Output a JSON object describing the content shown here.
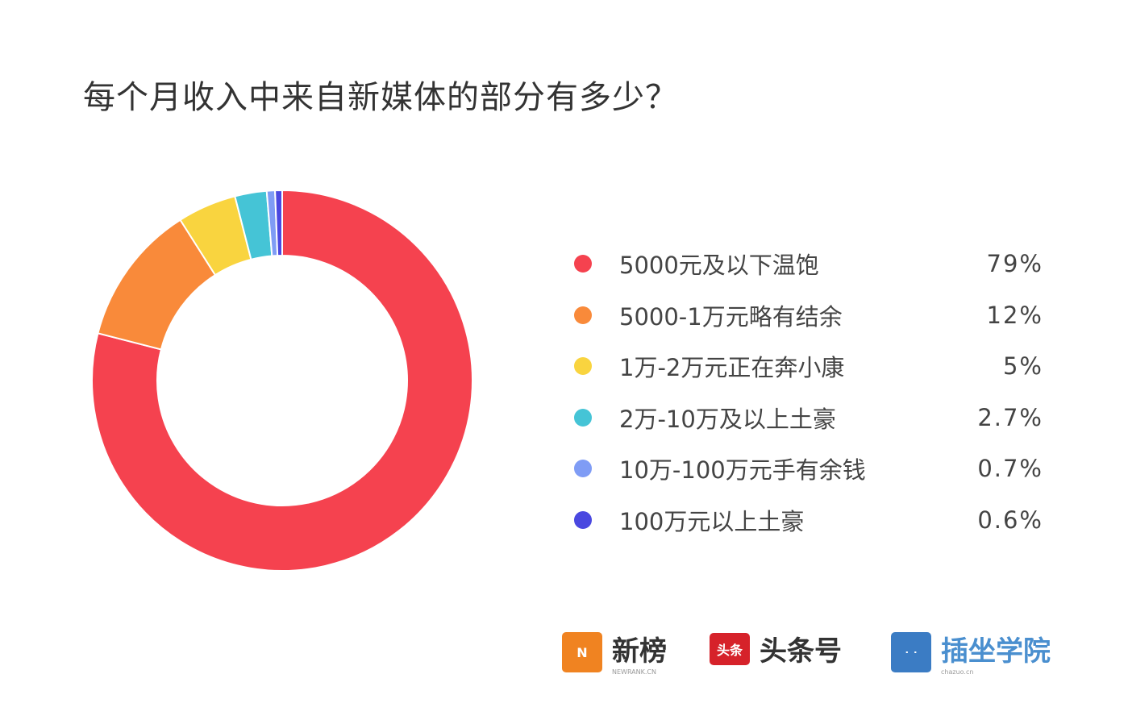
{
  "chart_data": {
    "type": "pie",
    "donut": true,
    "title": "每个月收入中来自新媒体的部分有多少？",
    "legend_position": "right",
    "categories": [
      "5000元及以下温饱",
      "5000-1万元略有结余",
      "1万-2万元正在奔小康",
      "2万-10万及以上土豪",
      "10万-100万元手有余钱",
      "100万元以上土豪"
    ],
    "values": [
      79,
      12,
      5,
      2.7,
      0.7,
      0.6
    ],
    "value_labels": [
      "79%",
      "12%",
      "5%",
      "2.7%",
      "0.7%",
      "0.6%"
    ],
    "colors": [
      "#f5424f",
      "#f98a3a",
      "#f9d43f",
      "#45c4d6",
      "#7f9cf5",
      "#4a48e0"
    ]
  },
  "logos": [
    {
      "name": "新榜",
      "sub": "NEWRANK.CN",
      "color": "#f08321"
    },
    {
      "name": "头条号",
      "badge": "头条",
      "color": "#d6222a"
    },
    {
      "name": "插坐学院",
      "sub": "chazuo.cn",
      "color": "#3b7cc4"
    }
  ]
}
